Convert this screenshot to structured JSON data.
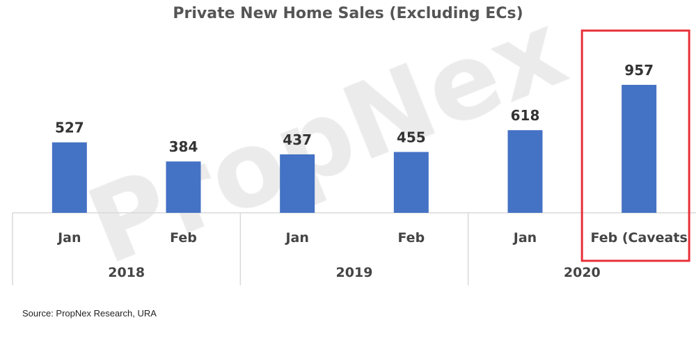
{
  "chart_data": {
    "type": "bar",
    "title": "Private New Home Sales (Excluding ECs)",
    "categories": [
      "Jan",
      "Feb",
      "Jan",
      "Feb",
      "Jan",
      "Feb (Caveats"
    ],
    "groups": [
      {
        "label": "2018",
        "count": 2
      },
      {
        "label": "2019",
        "count": 2
      },
      {
        "label": "2020",
        "count": 2
      }
    ],
    "values": [
      527,
      384,
      437,
      455,
      618,
      957
    ],
    "data_labels": true,
    "ylim": [
      0,
      1000
    ],
    "grid": false,
    "bar_color": "#4472C4",
    "highlight": {
      "category_index": 5,
      "color": "#E8303A"
    }
  },
  "watermark": "PropNex",
  "source": "Source: PropNex Research, URA"
}
